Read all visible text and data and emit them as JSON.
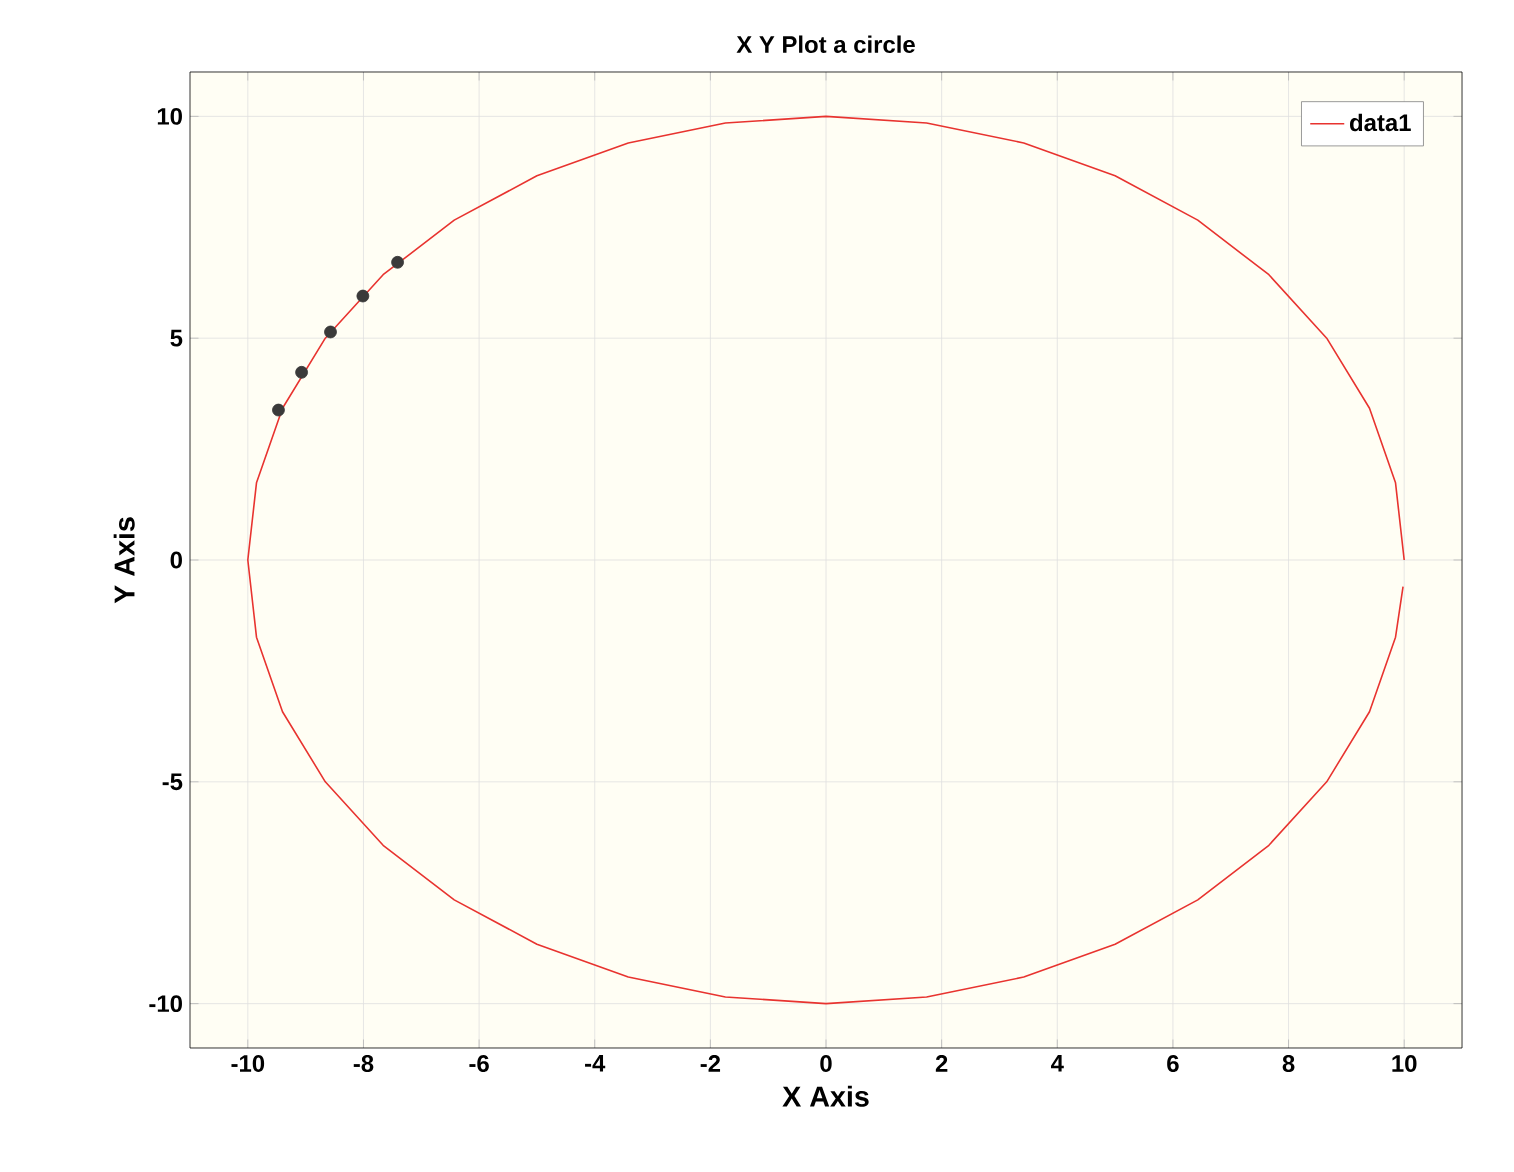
{
  "chart_data": {
    "type": "line",
    "title": "X Y Plot a circle",
    "xlabel": "X Axis",
    "ylabel": "Y Axis",
    "xlim": [
      -11,
      11
    ],
    "ylim": [
      -11,
      11
    ],
    "xticks": [
      -10,
      -8,
      -6,
      -4,
      -2,
      0,
      2,
      4,
      6,
      8,
      10
    ],
    "yticks": [
      -10,
      -5,
      0,
      5,
      10
    ],
    "grid": true,
    "legend": "top right",
    "series": [
      {
        "name": "data1",
        "color": "#e8332f",
        "x": [
          10,
          9.85,
          9.4,
          8.66,
          7.66,
          6.43,
          5,
          3.42,
          1.74,
          0,
          -1.74,
          -3.42,
          -5,
          -6.43,
          -7.66,
          -8.66,
          -9.4,
          -9.85,
          -10,
          -9.85,
          -9.4,
          -8.66,
          -7.66,
          -6.43,
          -5,
          -3.42,
          -1.74,
          0,
          1.74,
          3.42,
          5,
          6.43,
          7.66,
          8.66,
          9.4,
          9.85,
          9.98
        ],
        "values": [
          0,
          1.74,
          3.42,
          5,
          6.43,
          7.66,
          8.66,
          9.4,
          9.85,
          10,
          9.85,
          9.4,
          8.66,
          7.66,
          6.43,
          5,
          3.42,
          1.74,
          0,
          -1.74,
          -3.42,
          -5,
          -6.43,
          -7.66,
          -8.66,
          -9.4,
          -9.85,
          -10,
          -9.85,
          -9.4,
          -8.66,
          -7.66,
          -6.43,
          -5,
          -3.42,
          -1.74,
          -0.6
        ]
      },
      {
        "color": "#3a3a3a",
        "type": "scatter",
        "x": [
          -9.47,
          -9.07,
          -8.57,
          -8.01,
          -7.41
        ],
        "values": [
          3.38,
          4.23,
          5.14,
          5.95,
          6.71
        ]
      }
    ]
  }
}
